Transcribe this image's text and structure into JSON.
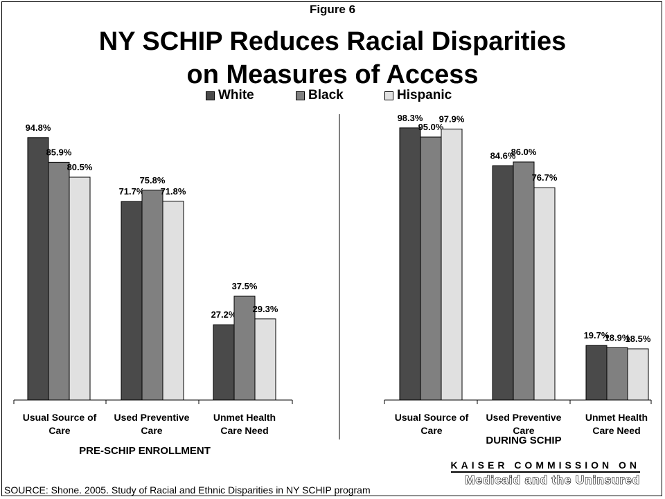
{
  "figure_label": "Figure 6",
  "title_line1": "NY SCHIP Reduces Racial Disparities",
  "title_line2": "on Measures of Access",
  "legend": [
    {
      "label": "White",
      "color": "#4a4a4a"
    },
    {
      "label": "Black",
      "color": "#808080"
    },
    {
      "label": "Hispanic",
      "color": "#e0e0e0"
    }
  ],
  "source": "SOURCE:  Shone. 2005.  Study of Racial and Ethnic Disparities in NY SCHIP program",
  "branding": {
    "line1": "KAISER COMMISSION ON",
    "line2": "Medicaid and the Uninsured"
  },
  "chart_data": {
    "type": "bar",
    "series_names": [
      "White",
      "Black",
      "Hispanic"
    ],
    "colors": [
      "#4a4a4a",
      "#808080",
      "#e0e0e0"
    ],
    "ylim": [
      0,
      100
    ],
    "panels": [
      {
        "label": "PRE-SCHIP ENROLLMENT",
        "categories": [
          [
            "Usual Source of",
            "Care"
          ],
          [
            "Used Preventive",
            "Care"
          ],
          [
            "Unmet Health",
            "Care Need"
          ]
        ],
        "values": [
          [
            94.8,
            85.9,
            80.5
          ],
          [
            71.7,
            75.8,
            71.8
          ],
          [
            27.2,
            37.5,
            29.3
          ]
        ],
        "labels": [
          [
            "94.8%",
            "85.9%",
            "80.5%"
          ],
          [
            "71.7%",
            "75.8%",
            "71.8%"
          ],
          [
            "27.2%",
            "37.5%",
            "29.3%"
          ]
        ]
      },
      {
        "label": "DURING SCHIP",
        "categories": [
          [
            "Usual Source of",
            "Care"
          ],
          [
            "Used Preventive",
            "Care"
          ],
          [
            "Unmet Health",
            "Care Need"
          ]
        ],
        "values": [
          [
            98.3,
            95.0,
            97.9
          ],
          [
            84.6,
            86.0,
            76.7
          ],
          [
            19.7,
            18.9,
            18.5
          ]
        ],
        "labels": [
          [
            "98.3%",
            "95.0%",
            "97.9%"
          ],
          [
            "84.6%",
            "86.0%",
            "76.7%"
          ],
          [
            "19.7%",
            "18.9%",
            "18.5%"
          ]
        ]
      }
    ]
  }
}
